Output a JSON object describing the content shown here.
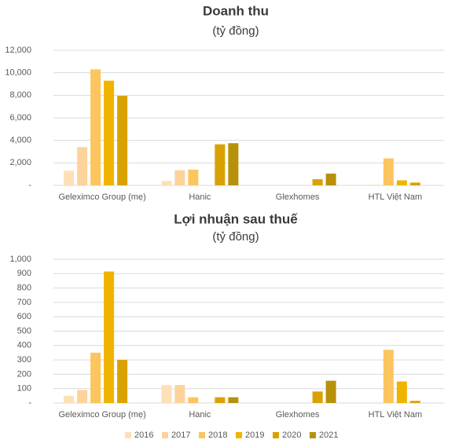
{
  "chart_data": [
    {
      "type": "bar",
      "title": "Doanh thu",
      "subtitle": "(tỷ đồng)",
      "categories": [
        "Geleximco Group (mẹ)",
        "Hanic",
        "Glexhomes",
        "HTL Việt Nam"
      ],
      "series": [
        {
          "color": "#fde0b8",
          "values": [
            1300,
            400,
            null,
            null
          ]
        },
        {
          "color": "#fcd39a",
          "values": [
            3400,
            1350,
            null,
            50
          ]
        },
        {
          "color": "#fcc55e",
          "values": [
            10300,
            1400,
            null,
            2400
          ]
        },
        {
          "color": "#f0b400",
          "values": [
            9300,
            null,
            null,
            450
          ]
        },
        {
          "color": "#d9a200",
          "values": [
            7950,
            3650,
            550,
            250
          ]
        },
        {
          "color": "#b8910b",
          "values": [
            null,
            3750,
            1050,
            null
          ]
        }
      ],
      "ylim": [
        0,
        12000
      ],
      "yticks": [
        {
          "value": 0,
          "label": "-"
        },
        {
          "value": 2000,
          "label": "2,000"
        },
        {
          "value": 4000,
          "label": "4,000"
        },
        {
          "value": 6000,
          "label": "6,000"
        },
        {
          "value": 8000,
          "label": "8,000"
        },
        {
          "value": 10000,
          "label": "10,000"
        },
        {
          "value": 12000,
          "label": "12,000"
        }
      ],
      "grid": true
    },
    {
      "type": "bar",
      "title": "Lợi nhuận sau thuế",
      "subtitle": "(tỷ đồng)",
      "categories": [
        "Geleximco Group (mẹ)",
        "Hanic",
        "Glexhomes",
        "HTL Việt Nam"
      ],
      "series": [
        {
          "name": "2016",
          "color": "#fde0b8",
          "values": [
            50,
            125,
            null,
            null
          ]
        },
        {
          "name": "2017",
          "color": "#fcd39a",
          "values": [
            90,
            125,
            null,
            null
          ]
        },
        {
          "name": "2018",
          "color": "#fcc55e",
          "values": [
            350,
            40,
            null,
            370
          ]
        },
        {
          "name": "2019",
          "color": "#f0b400",
          "values": [
            915,
            null,
            null,
            150
          ]
        },
        {
          "name": "2020",
          "color": "#d9a200",
          "values": [
            300,
            40,
            80,
            15
          ]
        },
        {
          "name": "2021",
          "color": "#b8910b",
          "values": [
            null,
            40,
            155,
            null
          ]
        }
      ],
      "ylim": [
        0,
        1000
      ],
      "yticks": [
        {
          "value": 0,
          "label": "-"
        },
        100,
        200,
        300,
        400,
        500,
        600,
        700,
        800,
        900,
        {
          "value": 1000,
          "label": "1,000"
        }
      ],
      "grid": true,
      "legend": "bottom"
    }
  ]
}
